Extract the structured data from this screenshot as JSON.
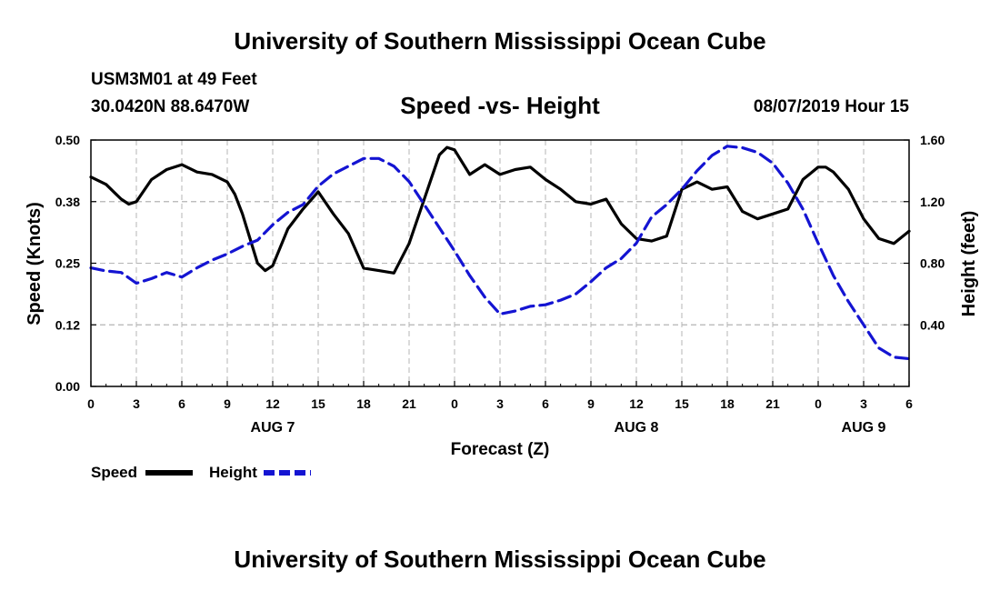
{
  "header": {
    "title": "University of Southern Mississippi Ocean Cube",
    "station": "USM3M01 at 49 Feet",
    "coords": "30.0420N 88.6470W",
    "subtitle": "Speed -vs- Height",
    "timestamp": "08/07/2019 Hour 15"
  },
  "footer": {
    "title": "University of Southern Mississippi Ocean Cube"
  },
  "colors": {
    "speed": "#000000",
    "height": "#1414d2",
    "grid": "#b4b4b4"
  },
  "chart_data": {
    "type": "line",
    "title": "Speed -vs- Height",
    "xlabel": "Forecast (Z)",
    "ylabel": "Speed (Knots)",
    "y2label": "Height (feet)",
    "xlim": [
      0,
      54
    ],
    "ylim": [
      0,
      0.5
    ],
    "y2lim": [
      0,
      1.6
    ],
    "x_ticks": [
      0,
      3,
      6,
      9,
      12,
      15,
      18,
      21,
      24,
      27,
      30,
      33,
      36,
      39,
      42,
      45,
      48,
      51,
      54
    ],
    "x_tick_labels": [
      "0",
      "3",
      "6",
      "9",
      "12",
      "15",
      "18",
      "21",
      "0",
      "3",
      "6",
      "9",
      "12",
      "15",
      "18",
      "21",
      "0",
      "3",
      "6"
    ],
    "y_tick_labels": [
      "0.00",
      "0.12",
      "0.25",
      "0.38",
      "0.50"
    ],
    "y_ticks": [
      0,
      0.125,
      0.25,
      0.375,
      0.5
    ],
    "y2_tick_labels": [
      "0.40",
      "0.80",
      "1.20",
      "1.60"
    ],
    "y2_ticks": [
      0.4,
      0.8,
      1.2,
      1.6
    ],
    "day_labels": [
      {
        "x": 12,
        "label": "AUG 7"
      },
      {
        "x": 36,
        "label": "AUG 8"
      },
      {
        "x": 51,
        "label": "AUG 9"
      }
    ],
    "legend": [
      {
        "name": "Speed",
        "style": "solid"
      },
      {
        "name": "Height",
        "style": "dashed"
      }
    ],
    "series": [
      {
        "name": "Speed",
        "axis": "left",
        "x": [
          0,
          1,
          2,
          2.5,
          3,
          4,
          5,
          6,
          7,
          8,
          9,
          9.5,
          10,
          10.5,
          11,
          11.5,
          12,
          13,
          14,
          15,
          16,
          17,
          18,
          19,
          20,
          21,
          22,
          23,
          23.5,
          24,
          25,
          26,
          27,
          28,
          29,
          30,
          31,
          32,
          33,
          34,
          35,
          36,
          37,
          38,
          39,
          40,
          41,
          42,
          43,
          44,
          45,
          46,
          47,
          48,
          48.5,
          49,
          50,
          51,
          52,
          53,
          54
        ],
        "values": [
          0.425,
          0.41,
          0.38,
          0.37,
          0.375,
          0.42,
          0.44,
          0.45,
          0.435,
          0.43,
          0.415,
          0.39,
          0.35,
          0.3,
          0.25,
          0.235,
          0.245,
          0.32,
          0.36,
          0.395,
          0.35,
          0.31,
          0.24,
          0.235,
          0.23,
          0.29,
          0.38,
          0.47,
          0.485,
          0.48,
          0.43,
          0.45,
          0.43,
          0.44,
          0.445,
          0.42,
          0.4,
          0.375,
          0.37,
          0.38,
          0.33,
          0.3,
          0.295,
          0.305,
          0.4,
          0.415,
          0.4,
          0.405,
          0.355,
          0.34,
          0.35,
          0.36,
          0.42,
          0.445,
          0.445,
          0.435,
          0.4,
          0.34,
          0.3,
          0.29,
          0.315
        ]
      },
      {
        "name": "Height",
        "axis": "right",
        "x": [
          0,
          1,
          2,
          3,
          4,
          5,
          6,
          7,
          8,
          9,
          10,
          11,
          12,
          13,
          14,
          15,
          16,
          17,
          18,
          19,
          20,
          21,
          22,
          23,
          24,
          25,
          26,
          27,
          28,
          29,
          30,
          31,
          32,
          33,
          34,
          35,
          36,
          37,
          38,
          39,
          40,
          41,
          42,
          43,
          44,
          45,
          46,
          47,
          48,
          49,
          50,
          51,
          52,
          53,
          54
        ],
        "values": [
          0.77,
          0.75,
          0.74,
          0.67,
          0.7,
          0.74,
          0.71,
          0.77,
          0.82,
          0.86,
          0.91,
          0.95,
          1.05,
          1.13,
          1.18,
          1.3,
          1.38,
          1.43,
          1.48,
          1.48,
          1.43,
          1.33,
          1.18,
          1.03,
          0.88,
          0.72,
          0.58,
          0.47,
          0.49,
          0.52,
          0.53,
          0.56,
          0.6,
          0.68,
          0.77,
          0.83,
          0.93,
          1.1,
          1.18,
          1.28,
          1.4,
          1.5,
          1.56,
          1.55,
          1.52,
          1.45,
          1.32,
          1.15,
          0.93,
          0.72,
          0.55,
          0.4,
          0.25,
          0.19,
          0.18
        ]
      }
    ]
  }
}
